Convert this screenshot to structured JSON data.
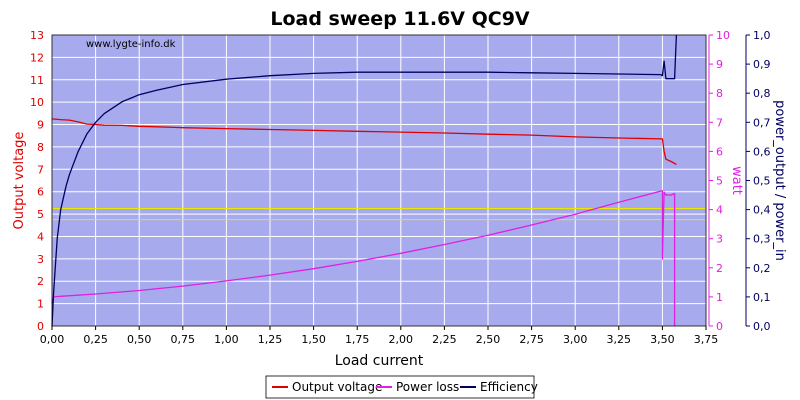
{
  "chart_data": {
    "type": "line",
    "title": "Load sweep 11.6V QC9V",
    "watermark": "www.lygte-info.dk",
    "xlabel": "Load current",
    "ylabel_left": "Output voltage",
    "ylabel_right1": "watt",
    "ylabel_right2": "power_output / power_in",
    "xlim": [
      0,
      3.75
    ],
    "ylim_left": [
      0,
      13
    ],
    "ylim_right1": [
      0,
      10
    ],
    "ylim_right2": [
      0,
      1.0
    ],
    "grid": true,
    "legend_position": "bottom-center",
    "background_color": "#a8aaee",
    "x_ticks": [
      "0,00",
      "0,25",
      "0,50",
      "0,75",
      "1,00",
      "1,25",
      "1,50",
      "1,75",
      "2,00",
      "2,25",
      "2,50",
      "2,75",
      "3,00",
      "3,25",
      "3,50",
      "3,75"
    ],
    "y_left_ticks": [
      "0",
      "1",
      "2",
      "3",
      "4",
      "5",
      "6",
      "7",
      "8",
      "9",
      "10",
      "11",
      "12",
      "13"
    ],
    "y_right1_ticks": [
      "0",
      "1",
      "2",
      "3",
      "4",
      "5",
      "6",
      "7",
      "8",
      "9",
      "10"
    ],
    "y_right2_ticks": [
      "0,0",
      "0,1",
      "0,2",
      "0,3",
      "0,4",
      "0,5",
      "0,6",
      "0,7",
      "0,8",
      "0,9",
      "1,0"
    ],
    "reference_lines_left": [
      {
        "y": 4.75,
        "color": "#e8e800"
      },
      {
        "y": 5.25,
        "color": "#e8e800"
      }
    ],
    "series": [
      {
        "name": "Output voltage",
        "axis": "left",
        "color": "#e00000",
        "points": [
          [
            0.0,
            9.25
          ],
          [
            0.05,
            9.22
          ],
          [
            0.1,
            9.2
          ],
          [
            0.15,
            9.12
          ],
          [
            0.2,
            9.02
          ],
          [
            0.25,
            9.0
          ],
          [
            0.3,
            8.97
          ],
          [
            0.4,
            8.96
          ],
          [
            0.5,
            8.92
          ],
          [
            0.6,
            8.9
          ],
          [
            0.7,
            8.87
          ],
          [
            0.75,
            8.86
          ],
          [
            1.0,
            8.82
          ],
          [
            1.25,
            8.78
          ],
          [
            1.5,
            8.74
          ],
          [
            1.75,
            8.7
          ],
          [
            2.0,
            8.66
          ],
          [
            2.25,
            8.62
          ],
          [
            2.5,
            8.57
          ],
          [
            2.75,
            8.53
          ],
          [
            3.0,
            8.45
          ],
          [
            3.25,
            8.4
          ],
          [
            3.5,
            8.36
          ],
          [
            3.51,
            7.8
          ],
          [
            3.52,
            7.45
          ],
          [
            3.55,
            7.35
          ],
          [
            3.58,
            7.22
          ]
        ]
      },
      {
        "name": "Power loss",
        "axis": "right1",
        "color": "#e020e0",
        "points": [
          [
            0.0,
            0.8
          ],
          [
            0.01,
            1.0
          ],
          [
            0.05,
            1.02
          ],
          [
            0.25,
            1.1
          ],
          [
            0.5,
            1.22
          ],
          [
            0.75,
            1.37
          ],
          [
            1.0,
            1.55
          ],
          [
            1.25,
            1.75
          ],
          [
            1.5,
            1.97
          ],
          [
            1.75,
            2.22
          ],
          [
            2.0,
            2.5
          ],
          [
            2.25,
            2.8
          ],
          [
            2.5,
            3.12
          ],
          [
            2.75,
            3.47
          ],
          [
            3.0,
            3.84
          ],
          [
            3.25,
            4.25
          ],
          [
            3.48,
            4.62
          ],
          [
            3.5,
            4.65
          ],
          [
            3.5,
            2.3
          ],
          [
            3.51,
            4.6
          ],
          [
            3.52,
            4.5
          ],
          [
            3.55,
            4.5
          ],
          [
            3.57,
            4.55
          ],
          [
            3.57,
            0
          ]
        ]
      },
      {
        "name": "Efficiency",
        "axis": "right2",
        "color": "#000060",
        "points": [
          [
            0.0,
            0.0
          ],
          [
            0.01,
            0.12
          ],
          [
            0.03,
            0.3
          ],
          [
            0.05,
            0.4
          ],
          [
            0.08,
            0.48
          ],
          [
            0.1,
            0.52
          ],
          [
            0.15,
            0.6
          ],
          [
            0.2,
            0.66
          ],
          [
            0.25,
            0.7
          ],
          [
            0.3,
            0.73
          ],
          [
            0.4,
            0.77
          ],
          [
            0.5,
            0.795
          ],
          [
            0.6,
            0.81
          ],
          [
            0.75,
            0.83
          ],
          [
            1.0,
            0.848
          ],
          [
            1.25,
            0.86
          ],
          [
            1.5,
            0.868
          ],
          [
            1.75,
            0.872
          ],
          [
            2.0,
            0.872
          ],
          [
            2.25,
            0.872
          ],
          [
            2.5,
            0.872
          ],
          [
            2.75,
            0.87
          ],
          [
            3.0,
            0.868
          ],
          [
            3.25,
            0.866
          ],
          [
            3.49,
            0.864
          ],
          [
            3.5,
            0.86
          ],
          [
            3.51,
            0.91
          ],
          [
            3.52,
            0.85
          ],
          [
            3.57,
            0.85
          ],
          [
            3.58,
            1.0
          ]
        ]
      }
    ]
  }
}
